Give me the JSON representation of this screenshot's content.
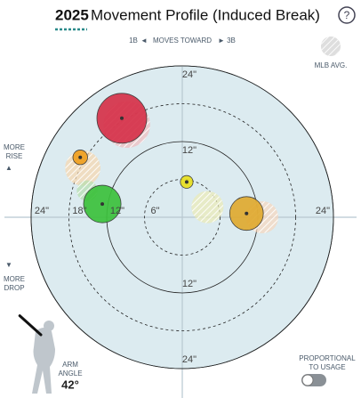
{
  "chart_data": {
    "type": "scatter",
    "title_year": "2025",
    "title": "Movement Profile (Induced Break)",
    "help": "?",
    "direction": {
      "left": "1B",
      "middle": "MOVES TOWARD",
      "right": "3B"
    },
    "more_rise": [
      "MORE",
      "RISE"
    ],
    "more_drop": [
      "MORE",
      "DROP"
    ],
    "xlim": [
      -24,
      24
    ],
    "ylim": [
      -24,
      24
    ],
    "xticks": [
      {
        "value": -24,
        "label": "24\""
      },
      {
        "value": -18,
        "label": "18\""
      },
      {
        "value": -12,
        "label": "12\""
      },
      {
        "value": -6,
        "label": "6\""
      },
      {
        "value": 24,
        "label": "24\""
      }
    ],
    "yticks": [
      {
        "value": 24,
        "label": "24\""
      },
      {
        "value": 12,
        "label": "12\""
      },
      {
        "value": -12,
        "label": "12\""
      },
      {
        "value": -24,
        "label": "24\""
      }
    ],
    "points": [
      {
        "x": -9.6,
        "y": 15.7,
        "usage": 46,
        "color": "#d6324a"
      },
      {
        "x": -16.2,
        "y": 9.5,
        "usage": 4,
        "color": "#f0a020"
      },
      {
        "x": -12.7,
        "y": 2.1,
        "usage": 26,
        "color": "#3cc13c"
      },
      {
        "x": 0.7,
        "y": 5.6,
        "usage": 3,
        "color": "#e8e020"
      },
      {
        "x": 10.2,
        "y": 0.6,
        "usage": 21,
        "color": "#e0aa30"
      }
    ],
    "mlb_avg": {
      "label": "MLB AVG.",
      "points": [
        {
          "x": -8.8,
          "y": 14.7,
          "usage": 40,
          "color": "#e07a80"
        },
        {
          "x": -15.8,
          "y": 7.8,
          "usage": 23,
          "color": "#f0b060"
        },
        {
          "x": -15.1,
          "y": 4.2,
          "usage": 8,
          "color": "#70c060"
        },
        {
          "x": 4.0,
          "y": 1.6,
          "usage": 19,
          "color": "#d8d870"
        },
        {
          "x": 12.7,
          "y": 0.0,
          "usage": 19,
          "color": "#f0b080"
        }
      ]
    },
    "arm_angle_label": [
      "ARM",
      "ANGLE"
    ],
    "arm_angle": {
      "value": 42,
      "label": "42°"
    },
    "toggle_label": [
      "PROPORTIONAL",
      "TO USAGE"
    ]
  }
}
